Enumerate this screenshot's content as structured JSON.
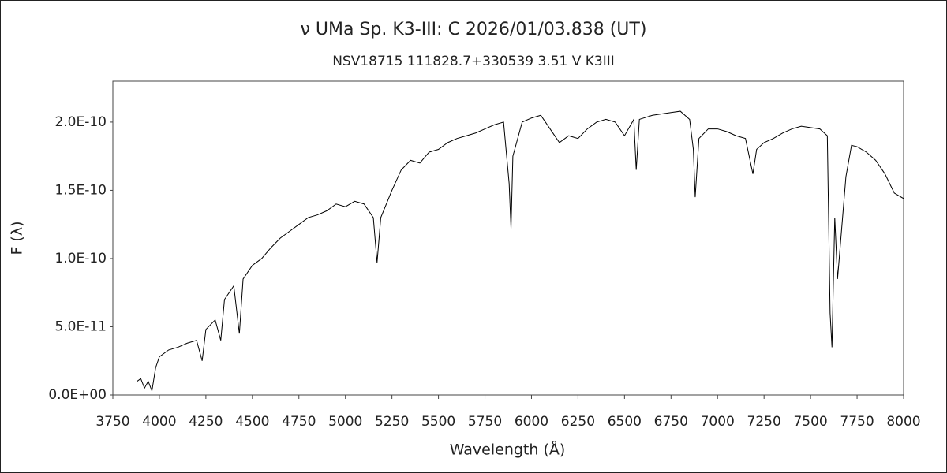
{
  "chart_data": {
    "type": "line",
    "title": "ν UMa    Sp. K3-III: C     2026/01/03.838 (UT)",
    "subtitle": "NSV18715    111828.7+330539    3.51  V    K3III",
    "x_label": "Wavelength (Å)",
    "y_label": "F (λ)",
    "xlim": [
      3750,
      8000
    ],
    "xticks": [
      3750,
      4000,
      4250,
      4500,
      4750,
      5000,
      5250,
      5500,
      5750,
      6000,
      6250,
      6500,
      6750,
      7000,
      7250,
      7500,
      7750,
      8000
    ],
    "ylim": [
      0,
      2.3e-10
    ],
    "yticks": [
      {
        "value": 0,
        "label": "0.0E+00"
      },
      {
        "value": 5e-11,
        "label": "5.0E-11"
      },
      {
        "value": 1e-10,
        "label": "1.0E-10"
      },
      {
        "value": 1.5e-10,
        "label": "1.5E-10"
      },
      {
        "value": 2e-10,
        "label": "2.0E-10"
      }
    ],
    "grid": false,
    "series": [
      {
        "color": "#000000",
        "x": [
          3880,
          3900,
          3920,
          3940,
          3960,
          3980,
          4000,
          4050,
          4100,
          4150,
          4200,
          4230,
          4250,
          4300,
          4330,
          4350,
          4400,
          4430,
          4450,
          4500,
          4550,
          4600,
          4650,
          4700,
          4750,
          4800,
          4850,
          4900,
          4950,
          5000,
          5050,
          5100,
          5150,
          5170,
          5190,
          5250,
          5300,
          5350,
          5400,
          5450,
          5500,
          5550,
          5600,
          5650,
          5700,
          5750,
          5800,
          5850,
          5880,
          5890,
          5900,
          5950,
          6000,
          6050,
          6100,
          6150,
          6200,
          6250,
          6300,
          6350,
          6400,
          6450,
          6500,
          6550,
          6563,
          6580,
          6650,
          6700,
          6750,
          6800,
          6850,
          6870,
          6880,
          6900,
          6950,
          7000,
          7050,
          7100,
          7150,
          7190,
          7210,
          7250,
          7300,
          7350,
          7400,
          7450,
          7500,
          7550,
          7590,
          7605,
          7615,
          7630,
          7645,
          7660,
          7690,
          7720,
          7750,
          7800,
          7850,
          7900,
          7950,
          8000
        ],
        "values": [
          1e-11,
          1.2e-11,
          5e-12,
          1e-11,
          3e-12,
          2e-11,
          2.8e-11,
          3.3e-11,
          3.5e-11,
          3.8e-11,
          4e-11,
          2.5e-11,
          4.8e-11,
          5.5e-11,
          4e-11,
          7e-11,
          8e-11,
          4.5e-11,
          8.5e-11,
          9.5e-11,
          1e-10,
          1.08e-10,
          1.15e-10,
          1.2e-10,
          1.25e-10,
          1.3e-10,
          1.32e-10,
          1.35e-10,
          1.4e-10,
          1.38e-10,
          1.42e-10,
          1.4e-10,
          1.3e-10,
          9.7e-11,
          1.3e-10,
          1.5e-10,
          1.65e-10,
          1.72e-10,
          1.7e-10,
          1.78e-10,
          1.8e-10,
          1.85e-10,
          1.88e-10,
          1.9e-10,
          1.92e-10,
          1.95e-10,
          1.98e-10,
          2e-10,
          1.55e-10,
          1.22e-10,
          1.75e-10,
          2e-10,
          2.03e-10,
          2.05e-10,
          1.95e-10,
          1.85e-10,
          1.9e-10,
          1.88e-10,
          1.95e-10,
          2e-10,
          2.02e-10,
          2e-10,
          1.9e-10,
          2.02e-10,
          1.65e-10,
          2.02e-10,
          2.05e-10,
          2.06e-10,
          2.07e-10,
          2.08e-10,
          2.02e-10,
          1.8e-10,
          1.45e-10,
          1.88e-10,
          1.95e-10,
          1.95e-10,
          1.93e-10,
          1.9e-10,
          1.88e-10,
          1.62e-10,
          1.8e-10,
          1.85e-10,
          1.88e-10,
          1.92e-10,
          1.95e-10,
          1.97e-10,
          1.96e-10,
          1.95e-10,
          1.9e-10,
          6e-11,
          3.5e-11,
          1.3e-10,
          8.5e-11,
          1.1e-10,
          1.6e-10,
          1.83e-10,
          1.82e-10,
          1.78e-10,
          1.72e-10,
          1.62e-10,
          1.48e-10,
          1.44e-10
        ]
      }
    ]
  }
}
